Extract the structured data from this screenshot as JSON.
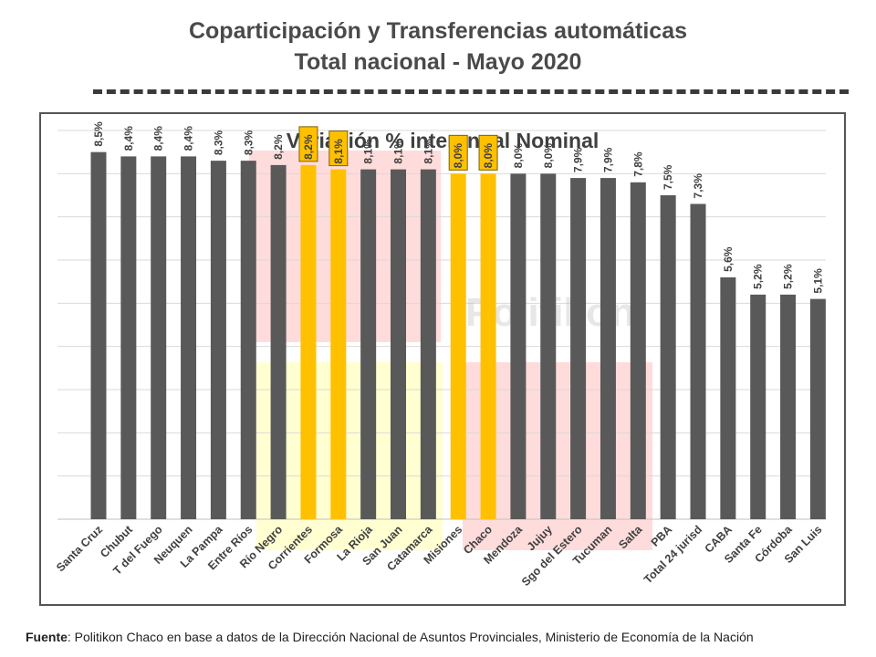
{
  "header": {
    "title_line1": "Coparticipación y Transferencias automáticas",
    "title_line2": "Total nacional - Mayo 2020"
  },
  "chart_data": {
    "type": "bar",
    "title": "Variación % interanual Nominal",
    "watermark": "Politikon",
    "categories": [
      "Santa Cruz",
      "Chubut",
      "T del Fuego",
      "Neuquen",
      "La Pampa",
      "Entre Ríos",
      "Río Negro",
      "Corrientes",
      "Formosa",
      "La Rioja",
      "San Juan",
      "Catamarca",
      "Misiones",
      "Chaco",
      "Mendoza",
      "Jujuy",
      "Sgo del Estero",
      "Tucuman",
      "Salta",
      "PBA",
      "Total 24 jurisd",
      "CABA",
      "Santa Fe",
      "Córdoba",
      "San Luis"
    ],
    "values": [
      8.5,
      8.4,
      8.4,
      8.4,
      8.3,
      8.3,
      8.2,
      8.2,
      8.1,
      8.1,
      8.1,
      8.1,
      8.0,
      8.0,
      8.0,
      8.0,
      7.9,
      7.9,
      7.8,
      7.5,
      7.3,
      5.6,
      5.2,
      5.2,
      5.1
    ],
    "labels": [
      "8,5%",
      "8,4%",
      "8,4%",
      "8,4%",
      "8,3%",
      "8,3%",
      "8,2%",
      "8,2%",
      "8,1%",
      "8,1%",
      "8,1%",
      "8,1%",
      "8,0%",
      "8,0%",
      "8,0%",
      "8,0%",
      "7,9%",
      "7,9%",
      "7,8%",
      "7,5%",
      "7,3%",
      "5,6%",
      "5,2%",
      "5,2%",
      "5,1%"
    ],
    "highlighted": [
      "Corrientes",
      "Formosa",
      "Misiones",
      "Chaco"
    ],
    "ylim": [
      0,
      9
    ],
    "grid": true,
    "xlabel": "",
    "ylabel": "",
    "colors": {
      "bar": "#595959",
      "highlight": "#ffc000",
      "highlight_label_bg": "#ffc000",
      "highlight_label_border": "#7f6000",
      "grid": "#d9d9d9",
      "overlay_red": "#ff9a9a",
      "overlay_yellow": "#ffff99"
    }
  },
  "footnote": {
    "label": "Fuente",
    "text": ": Politikon Chaco en base a datos de la Dirección Nacional de Asuntos Provinciales, Ministerio de Economía de la Nación"
  }
}
